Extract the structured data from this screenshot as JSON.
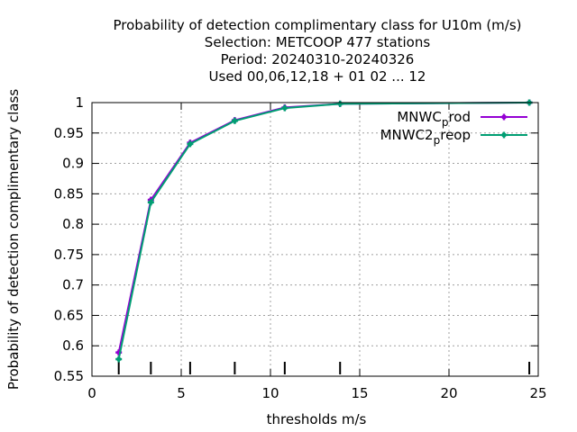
{
  "chart_data": {
    "type": "line",
    "title_lines": [
      "Probability of detection complimentary class  for U10m (m/s)",
      "Selection: METCOOP    477 stations",
      "Period: 20240310-20240326",
      "Used  00,06,12,18 + 01 02 ... 12"
    ],
    "xlabel": "thresholds m/s",
    "ylabel": "Probability of detection complimentary class",
    "xlim": [
      0,
      25
    ],
    "ylim": [
      0.55,
      1.0
    ],
    "x_ticks": [
      0,
      5,
      10,
      15,
      20,
      25
    ],
    "y_ticks": [
      0.55,
      0.6,
      0.65,
      0.7,
      0.75,
      0.8,
      0.85,
      0.9,
      0.95,
      1.0
    ],
    "grid": true,
    "legend_position": "top-right",
    "threshold_markers_x": [
      1.5,
      3.3,
      5.5,
      8.0,
      10.8,
      13.9,
      24.5
    ],
    "series": [
      {
        "name": "MNWC_prod",
        "legend_main": "MNWC",
        "legend_sub": "p",
        "legend_rest": "rod",
        "color": "#9400d3",
        "x": [
          1.5,
          3.3,
          5.5,
          8.0,
          10.8,
          13.9,
          24.5
        ],
        "y": [
          0.589,
          0.84,
          0.934,
          0.971,
          0.992,
          0.998,
          1.0
        ]
      },
      {
        "name": "MNWC2_preop",
        "legend_main": "MNWC2",
        "legend_sub": "p",
        "legend_rest": "reop",
        "color": "#009e73",
        "x": [
          1.5,
          3.3,
          5.5,
          8.0,
          10.8,
          13.9,
          24.5
        ],
        "y": [
          0.578,
          0.836,
          0.932,
          0.97,
          0.991,
          0.998,
          1.0
        ]
      }
    ]
  }
}
